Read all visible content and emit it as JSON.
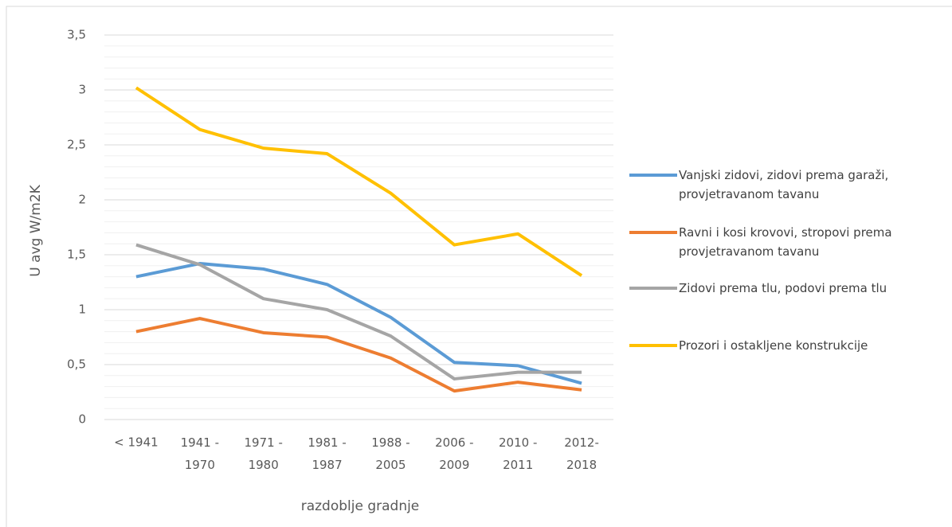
{
  "chart_data": {
    "type": "line",
    "y_label": "U avg W/m2K",
    "x_label": "razdoblje gradnje",
    "categories": [
      "< 1941",
      "1941 - 1970",
      "1971 - 1980",
      "1981 - 1987",
      "1988 - 2005",
      "2006 - 2009",
      "2010 - 2011",
      "2012-2018"
    ],
    "series": [
      {
        "name": "Vanjski zidovi, zidovi prema garaži, provjetravanom tavanu",
        "color": "#5b9bd5",
        "values": [
          1.3,
          1.42,
          1.37,
          1.23,
          0.93,
          0.52,
          0.49,
          0.33
        ]
      },
      {
        "name": "Ravni i kosi krovovi, stropovi prema provjetravanom tavanu",
        "color": "#ed7d31",
        "values": [
          0.8,
          0.92,
          0.79,
          0.75,
          0.56,
          0.26,
          0.34,
          0.27
        ]
      },
      {
        "name": "Zidovi prema tlu, podovi prema tlu",
        "color": "#a5a5a5",
        "values": [
          1.59,
          1.41,
          1.1,
          1.0,
          0.76,
          0.37,
          0.43,
          0.43
        ]
      },
      {
        "name": "Prozori i ostakljene konstrukcije",
        "color": "#ffc000",
        "values": [
          3.02,
          2.64,
          2.47,
          2.42,
          2.06,
          1.59,
          1.69,
          1.31
        ]
      }
    ],
    "ylim": [
      0,
      3.5
    ],
    "yticks": [
      0,
      {
        "value": 0.5,
        "label": "0,5"
      },
      1,
      {
        "value": 1.5,
        "label": "1,5"
      },
      2,
      {
        "value": 2.5,
        "label": "2,5"
      },
      3,
      {
        "value": 3.5,
        "label": "3,5"
      }
    ],
    "grid": true,
    "legend": "right"
  }
}
